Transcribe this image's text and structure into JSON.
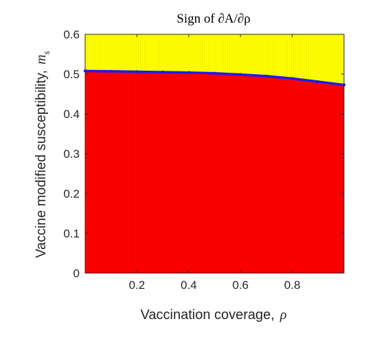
{
  "chart_data": {
    "type": "heatmap",
    "title": "Sign of ∂A/∂ρ",
    "xlabel": "Vaccination coverage,",
    "xlabel_symbol": "ρ",
    "ylabel": "Vaccine modified susceptibility,",
    "ylabel_symbol": "m",
    "ylabel_symbol_sub": "s",
    "xlim": [
      0,
      1
    ],
    "ylim": [
      0,
      0.6
    ],
    "xticks": [
      0.2,
      0.4,
      0.6,
      0.8
    ],
    "xtick_labels": [
      "0.2",
      "0.4",
      "0.6",
      "0.8"
    ],
    "yticks": [
      0,
      0.1,
      0.2,
      0.3,
      0.4,
      0.5,
      0.6
    ],
    "ytick_labels": [
      "0",
      "0.1",
      "0.2",
      "0.3",
      "0.4",
      "0.5",
      "0.6"
    ],
    "regions": [
      {
        "name": "",
        "color": "#ff0000",
        "position": "below boundary"
      },
      {
        "name": "",
        "color": "#ffff00",
        "position": "above boundary"
      }
    ],
    "boundary": {
      "color": "#1a1aff",
      "x": [
        0.0,
        0.1,
        0.2,
        0.3,
        0.4,
        0.5,
        0.6,
        0.7,
        0.8,
        0.9,
        1.0
      ],
      "y": [
        0.508,
        0.507,
        0.506,
        0.505,
        0.504,
        0.502,
        0.499,
        0.495,
        0.489,
        0.481,
        0.473
      ]
    },
    "grid": false,
    "legend": "none"
  }
}
